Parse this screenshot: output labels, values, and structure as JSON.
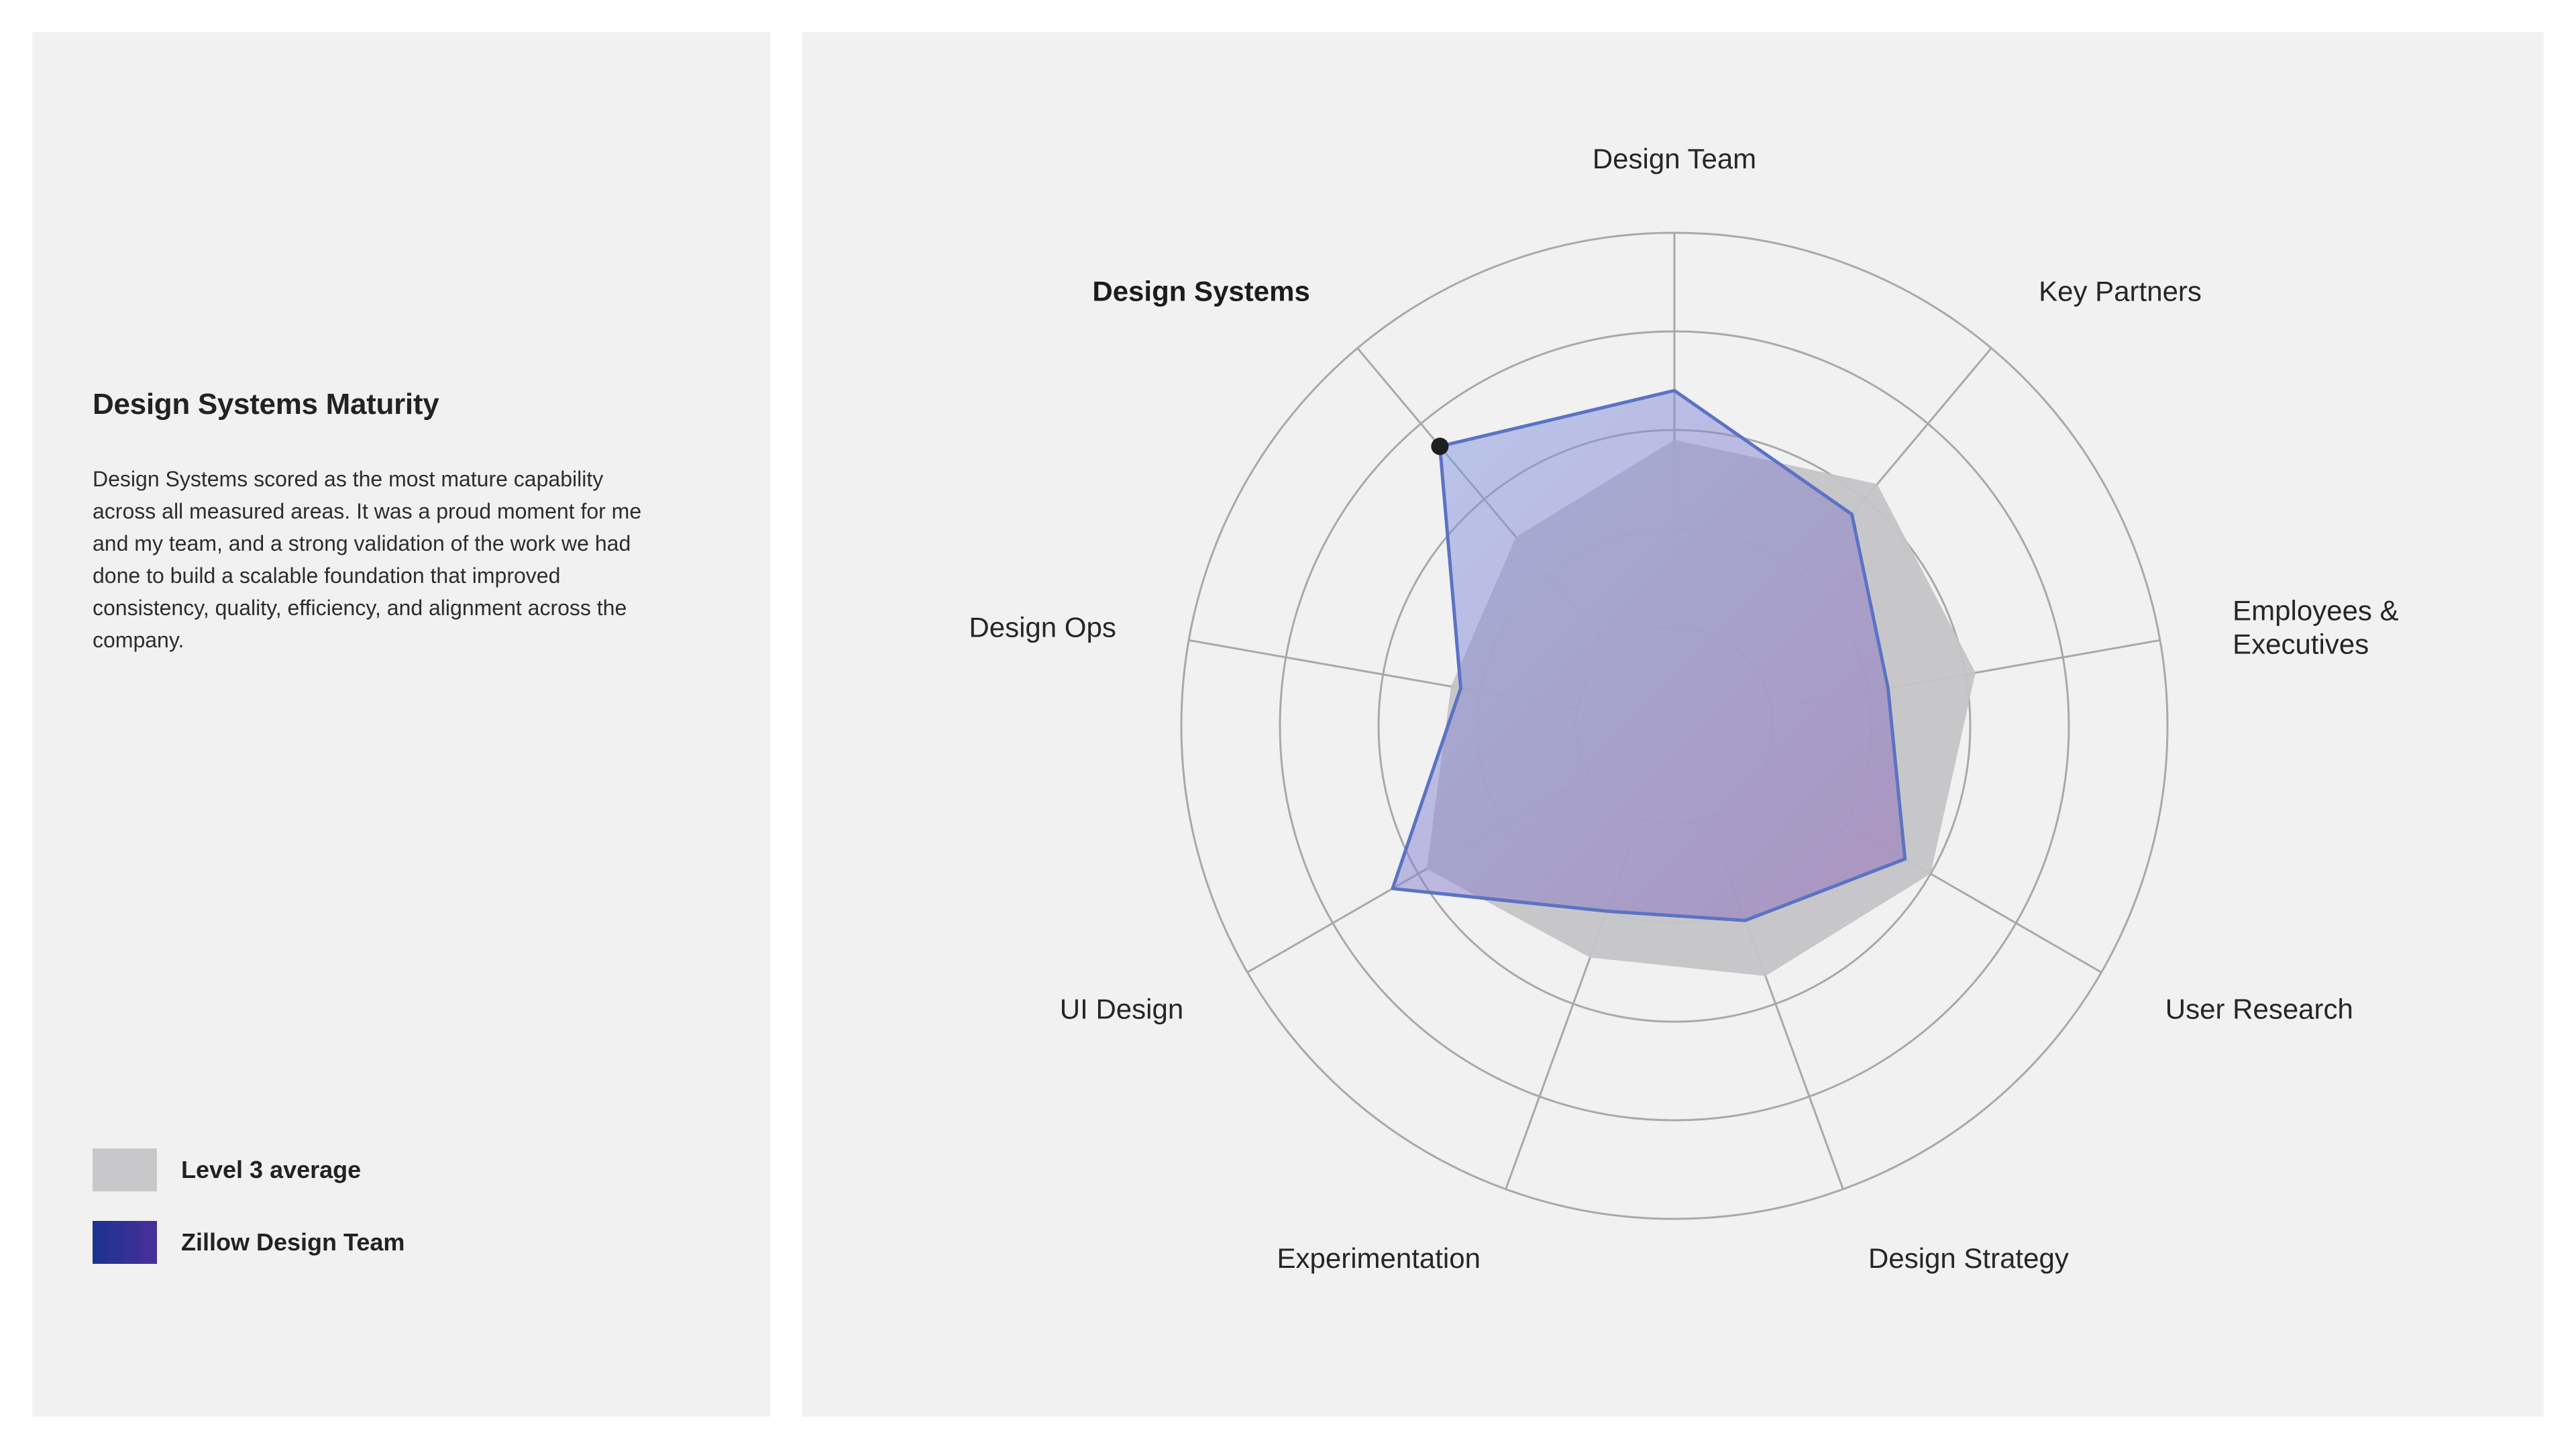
{
  "panel": {
    "title": "Design Systems Maturity",
    "description": "Design Systems scored as the most mature capability across all measured areas. It was a proud moment for me and my team, and a strong validation of the work we had done to build a scalable foundation that improved consistency, quality, efficiency, and alignment across the company."
  },
  "legend": [
    {
      "label": "Level 3 average",
      "color": "#c8c8ca"
    },
    {
      "label": "Zillow Design Team",
      "color": "#2a3492"
    }
  ],
  "chart_data": {
    "type": "radar",
    "axes": [
      {
        "label": [
          "Design Team"
        ]
      },
      {
        "label": [
          "Key Partners"
        ]
      },
      {
        "label": [
          "Employees &",
          "Executives"
        ]
      },
      {
        "label": [
          "User Research"
        ]
      },
      {
        "label": [
          "Design Strategy"
        ]
      },
      {
        "label": [
          "Experimentation"
        ]
      },
      {
        "label": [
          "UI Design"
        ]
      },
      {
        "label": [
          "Design Ops"
        ]
      },
      {
        "label": [
          "Design Systems"
        ],
        "highlight": true
      }
    ],
    "rlim": [
      0,
      5
    ],
    "rings": [
      1,
      2,
      3,
      4,
      5
    ],
    "series": [
      {
        "name": "Level 3 average",
        "values": [
          2.9,
          3.2,
          3.1,
          3.0,
          2.7,
          2.5,
          2.9,
          2.3,
          2.5
        ],
        "color": "#c4c4c6"
      },
      {
        "name": "Zillow Design Team",
        "values": [
          3.4,
          2.8,
          2.2,
          2.7,
          2.1,
          2.0,
          3.3,
          2.2,
          3.7
        ],
        "color": "#5b73c4",
        "highlight_index": 8
      }
    ]
  }
}
